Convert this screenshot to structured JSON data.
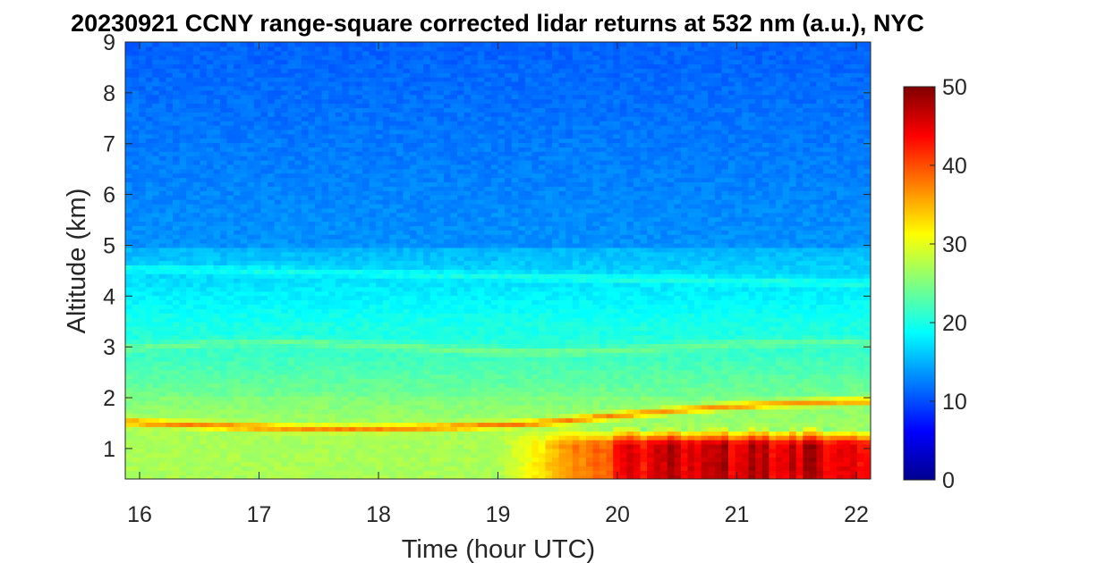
{
  "chart_data": {
    "type": "heatmap",
    "title": "20230921 CCNY range-square corrected lidar returns at 532 nm (a.u.), NYC",
    "xlabel": "Time (hour UTC)",
    "ylabel": "Altitude (km)",
    "xlim": [
      15.88,
      22.12
    ],
    "ylim": [
      0.4,
      9
    ],
    "x_ticks": [
      16,
      17,
      18,
      19,
      20,
      21,
      22
    ],
    "y_ticks": [
      1,
      2,
      3,
      4,
      5,
      6,
      7,
      8,
      9
    ],
    "colormap": "jet",
    "colorbar": {
      "range": [
        0,
        50
      ],
      "ticks": [
        0,
        10,
        20,
        30,
        40,
        50
      ]
    },
    "features": [
      {
        "name": "free-troposphere background",
        "altitude_km": [
          5,
          9
        ],
        "value": 11
      },
      {
        "name": "upper aerosol layer",
        "altitude_km": 4.5,
        "value": 15
      },
      {
        "name": "mid aerosol layer",
        "altitude_km": 3.0,
        "value": 24
      },
      {
        "name": "elevated layer",
        "altitude_km": 1.5,
        "value": 39
      },
      {
        "name": "boundary layer",
        "altitude_km": [
          0.4,
          1.4
        ],
        "value_early": 27,
        "value_late": 46
      }
    ]
  }
}
